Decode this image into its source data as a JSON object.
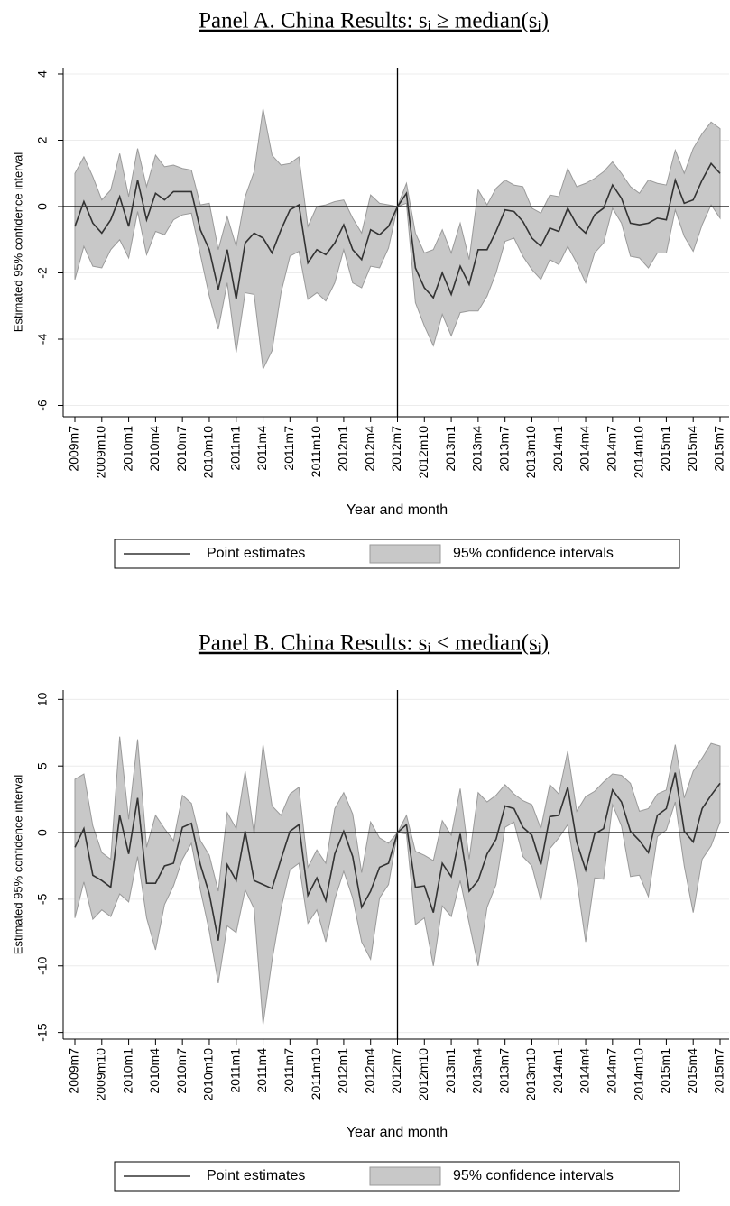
{
  "chart_data": [
    {
      "type": "line",
      "title": "Panel A. China Results: sᵢ ≥ median(sᵢ)",
      "ylabel": "Estimated 95% confidence interval",
      "xlabel": "Year and month",
      "categories": [
        "2009m7",
        null,
        null,
        "2009m10",
        null,
        null,
        "2010m1",
        null,
        null,
        "2010m4",
        null,
        null,
        "2010m7",
        null,
        null,
        "2010m10",
        null,
        null,
        "2011m1",
        null,
        null,
        "2011m4",
        null,
        null,
        "2011m7",
        null,
        null,
        "2011m10",
        null,
        null,
        "2012m1",
        null,
        null,
        "2012m4",
        null,
        null,
        "2012m7",
        null,
        null,
        "2012m10",
        null,
        null,
        "2013m1",
        null,
        null,
        "2013m4",
        null,
        null,
        "2013m7",
        null,
        null,
        "2013m10",
        null,
        null,
        "2014m1",
        null,
        null,
        "2014m4",
        null,
        null,
        "2014m7",
        null,
        null,
        "2014m10",
        null,
        null,
        "2015m1",
        null,
        null,
        "2015m4",
        null,
        null,
        "2015m7"
      ],
      "series": [
        {
          "name": "Point estimates",
          "color": "#333333",
          "values": [
            -0.6,
            0.15,
            -0.5,
            -0.8,
            -0.4,
            0.3,
            -0.6,
            0.8,
            -0.4,
            0.4,
            0.2,
            0.45,
            0.45,
            0.45,
            -0.7,
            -1.3,
            -2.5,
            -1.3,
            -2.8,
            -1.1,
            -0.8,
            -0.95,
            -1.4,
            -0.7,
            -0.1,
            0.05,
            -1.7,
            -1.3,
            -1.45,
            -1.1,
            -0.55,
            -1.3,
            -1.6,
            -0.7,
            -0.85,
            -0.6,
            0,
            0.4,
            -1.85,
            -2.45,
            -2.75,
            -2.0,
            -2.65,
            -1.8,
            -2.35,
            -1.3,
            -1.3,
            -0.75,
            -0.1,
            -0.15,
            -0.45,
            -0.95,
            -1.2,
            -0.65,
            -0.75,
            -0.05,
            -0.55,
            -0.8,
            -0.25,
            -0.05,
            0.65,
            0.25,
            -0.5,
            -0.55,
            -0.5,
            -0.35,
            -0.4,
            0.8,
            0.1,
            0.2,
            0.8,
            1.3,
            1.0
          ]
        }
      ],
      "band": {
        "name": "95% confidence intervals",
        "color": "#c8c8c8",
        "upper": [
          1.0,
          1.5,
          0.9,
          0.2,
          0.5,
          1.6,
          0.3,
          1.75,
          0.6,
          1.55,
          1.2,
          1.25,
          1.15,
          1.1,
          0.05,
          0.1,
          -1.3,
          -0.3,
          -1.2,
          0.3,
          1.05,
          2.95,
          1.55,
          1.25,
          1.3,
          1.5,
          -0.6,
          0,
          0.05,
          0.15,
          0.2,
          -0.35,
          -0.8,
          0.35,
          0.1,
          0.05,
          0,
          0.7,
          -0.8,
          -1.4,
          -1.3,
          -0.7,
          -1.4,
          -0.5,
          -1.6,
          0.5,
          0.05,
          0.55,
          0.8,
          0.65,
          0.6,
          -0.05,
          -0.2,
          0.35,
          0.3,
          1.15,
          0.6,
          0.7,
          0.85,
          1.05,
          1.35,
          1.0,
          0.6,
          0.4,
          0.8,
          0.7,
          0.65,
          1.7,
          1.0,
          1.75,
          2.2,
          2.55,
          2.35
        ],
        "lower": [
          -2.2,
          -1.2,
          -1.8,
          -1.85,
          -1.3,
          -1.0,
          -1.55,
          -0.15,
          -1.45,
          -0.75,
          -0.85,
          -0.4,
          -0.25,
          -0.2,
          -1.45,
          -2.7,
          -3.7,
          -2.3,
          -4.4,
          -2.6,
          -2.65,
          -4.9,
          -4.35,
          -2.6,
          -1.5,
          -1.35,
          -2.8,
          -2.6,
          -2.85,
          -2.3,
          -1.3,
          -2.3,
          -2.45,
          -1.8,
          -1.85,
          -1.25,
          0,
          0.1,
          -2.9,
          -3.6,
          -4.2,
          -3.25,
          -3.9,
          -3.2,
          -3.15,
          -3.15,
          -2.7,
          -2.0,
          -1.05,
          -0.95,
          -1.5,
          -1.9,
          -2.2,
          -1.6,
          -1.75,
          -1.2,
          -1.7,
          -2.3,
          -1.4,
          -1.1,
          -0.05,
          -0.5,
          -1.5,
          -1.55,
          -1.85,
          -1.4,
          -1.4,
          -0.1,
          -0.9,
          -1.35,
          -0.55,
          0.05,
          -0.35
        ]
      },
      "ylim": [
        -6.34,
        4.19
      ],
      "yticks": [
        -6,
        -4,
        -2,
        0,
        2,
        4
      ],
      "grid": true,
      "hline": 0,
      "vline": "2012m7"
    },
    {
      "type": "line",
      "title": "Panel B. China Results: sᵢ < median(sᵢ)",
      "ylabel": "Estimated 95% confidence interval",
      "xlabel": "Year and month",
      "categories": [
        "2009m7",
        null,
        null,
        "2009m10",
        null,
        null,
        "2010m1",
        null,
        null,
        "2010m4",
        null,
        null,
        "2010m7",
        null,
        null,
        "2010m10",
        null,
        null,
        "2011m1",
        null,
        null,
        "2011m4",
        null,
        null,
        "2011m7",
        null,
        null,
        "2011m10",
        null,
        null,
        "2012m1",
        null,
        null,
        "2012m4",
        null,
        null,
        "2012m7",
        null,
        null,
        "2012m10",
        null,
        null,
        "2013m1",
        null,
        null,
        "2013m4",
        null,
        null,
        "2013m7",
        null,
        null,
        "2013m10",
        null,
        null,
        "2014m1",
        null,
        null,
        "2014m4",
        null,
        null,
        "2014m7",
        null,
        null,
        "2014m10",
        null,
        null,
        "2015m1",
        null,
        null,
        "2015m4",
        null,
        null,
        "2015m7"
      ],
      "series": [
        {
          "name": "Point estimates",
          "color": "#333333",
          "values": [
            -1.1,
            0.3,
            -3.2,
            -3.6,
            -4.1,
            1.3,
            -1.6,
            2.6,
            -3.8,
            -3.8,
            -2.5,
            -2.3,
            0.4,
            0.7,
            -2.4,
            -4.6,
            -8.1,
            -2.4,
            -3.6,
            0.1,
            -3.6,
            -3.9,
            -4.2,
            -2.0,
            0.1,
            0.6,
            -4.7,
            -3.4,
            -5.1,
            -1.6,
            0.1,
            -1.8,
            -5.6,
            -4.4,
            -2.6,
            -2.3,
            0,
            0.6,
            -4.1,
            -4.0,
            -6.0,
            -2.3,
            -3.3,
            -0.1,
            -4.4,
            -3.6,
            -1.6,
            -0.5,
            2.0,
            1.8,
            0.4,
            -0.2,
            -2.4,
            1.2,
            1.3,
            3.4,
            -0.7,
            -2.8,
            -0.1,
            0.3,
            3.2,
            2.3,
            0.1,
            -0.6,
            -1.5,
            1.3,
            1.8,
            4.5,
            0.1,
            -0.7,
            1.8,
            2.8,
            3.7
          ]
        }
      ],
      "band": {
        "name": "95% confidence intervals",
        "color": "#c8c8c8",
        "upper": [
          4.0,
          4.4,
          0.5,
          -1.5,
          -2.0,
          7.2,
          1.0,
          7.0,
          -1.1,
          1.3,
          0.3,
          -0.6,
          2.8,
          2.2,
          -0.6,
          -1.7,
          -4.4,
          1.5,
          0.3,
          4.6,
          -0.1,
          6.6,
          2.0,
          1.3,
          2.9,
          3.4,
          -2.6,
          -1.3,
          -2.3,
          1.8,
          3.0,
          1.4,
          -3.0,
          0.8,
          -0.4,
          -0.8,
          0,
          1.3,
          -1.4,
          -1.7,
          -2.1,
          0.9,
          -0.2,
          3.3,
          -2.0,
          3.0,
          2.3,
          2.8,
          3.6,
          2.9,
          2.4,
          2.1,
          0.3,
          3.6,
          2.9,
          6.1,
          1.6,
          2.7,
          3.1,
          3.8,
          4.4,
          4.3,
          3.7,
          1.6,
          1.8,
          2.9,
          3.2,
          6.6,
          2.6,
          4.6,
          5.6,
          6.7,
          6.5
        ],
        "lower": [
          -6.4,
          -3.7,
          -6.5,
          -5.8,
          -6.3,
          -4.6,
          -5.2,
          -1.8,
          -6.4,
          -8.8,
          -5.4,
          -4.0,
          -2.0,
          -0.8,
          -4.3,
          -7.4,
          -11.3,
          -7.0,
          -7.5,
          -4.3,
          -5.7,
          -14.4,
          -9.6,
          -5.7,
          -2.8,
          -2.3,
          -6.8,
          -5.8,
          -8.2,
          -5.0,
          -2.9,
          -4.9,
          -8.2,
          -9.5,
          -4.9,
          -3.9,
          0,
          -0.1,
          -6.9,
          -6.4,
          -10.0,
          -5.5,
          -6.3,
          -3.6,
          -6.8,
          -10.0,
          -5.6,
          -3.9,
          0.4,
          0.8,
          -1.8,
          -2.5,
          -5.1,
          -1.2,
          -0.4,
          0.6,
          -3.5,
          -8.2,
          -3.4,
          -3.5,
          2.1,
          0.5,
          -3.3,
          -3.2,
          -4.8,
          -0.3,
          0.2,
          2.3,
          -2.5,
          -6.0,
          -2.0,
          -1.0,
          0.8
        ]
      },
      "ylim": [
        -15.5,
        10.7
      ],
      "yticks": [
        -15,
        -10,
        -5,
        0,
        5,
        10
      ],
      "grid": true,
      "hline": 0,
      "vline": "2012m7"
    }
  ]
}
